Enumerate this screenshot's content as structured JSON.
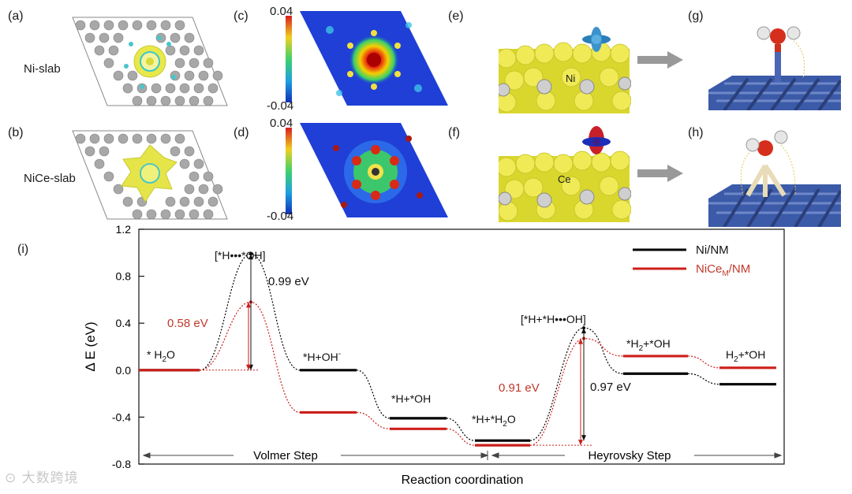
{
  "top_panels": {
    "labels": {
      "a": "(a)",
      "b": "(b)",
      "c": "(c)",
      "d": "(d)",
      "e": "(e)",
      "f": "(f)",
      "g": "(g)",
      "h": "(h)",
      "i": "(i)"
    },
    "slab_names": {
      "ni": "Ni-slab",
      "nice": "NiCe-slab"
    },
    "colorbar_c": {
      "max": "0.04",
      "min": "-0.04"
    },
    "colorbar_d": {
      "max": "0.04",
      "min": "-0.04"
    },
    "atom_labels": {
      "ni": "Ni",
      "ce": "Ce"
    }
  },
  "chart_data": {
    "type": "line",
    "title": "",
    "xlabel": "Reaction coordination",
    "ylabel": "Δ E (eV)",
    "ylim": [
      -0.8,
      1.2
    ],
    "yticks": [
      "-0.8",
      "-0.4",
      "0.0",
      "0.4",
      "0.8",
      "1.2"
    ],
    "ytick_values": [
      -0.8,
      -0.4,
      0.0,
      0.4,
      0.8,
      1.2
    ],
    "states": [
      "* H2O",
      "[*H•••*OH]",
      "*H+OH-",
      "*H+*OH",
      "*H+*H2O",
      "[*H+*H•••OH]",
      "H2+*OH (a)",
      "H2+*OH (b)"
    ],
    "series": [
      {
        "name": "Ni/NM",
        "color": "#000000",
        "levels": [
          0.0,
          -0.41,
          -0.6,
          -0.03,
          -0.12
        ],
        "ts": [
          0.99,
          0.36
        ]
      },
      {
        "name": "NiCeM/NM",
        "color": "#cc1f1a",
        "levels": [
          0.0,
          -0.36,
          -0.5,
          -0.64,
          0.12,
          0.02
        ],
        "ts": [
          0.58,
          0.27
        ]
      }
    ],
    "legend": [
      {
        "label": "Ni/NM",
        "color": "#000000"
      },
      {
        "label_main": "NiCe",
        "label_sub": "M",
        "label_tail": "/NM",
        "color": "#cc1f1a"
      }
    ],
    "state_labels": {
      "h2o": {
        "pre": "* H",
        "sub": "2",
        "post": "O"
      },
      "ts1": "[*H•••*OH]",
      "hoh": {
        "pre": "*H+OH",
        "sup": "-"
      },
      "hoh2": "*H+*OH",
      "hh2o": {
        "pre": "*H+*H",
        "sub": "2",
        "post": "O"
      },
      "ts2": "[*H+*H•••OH]",
      "h2oh_a": {
        "pre": "*H",
        "sub": "2",
        "post": "+*OH"
      },
      "h2oh_b": {
        "pre": "H",
        "sub": "2",
        "post": "+*OH"
      }
    },
    "barriers": [
      {
        "text": "0.99 eV",
        "color": "black"
      },
      {
        "text": "0.58 eV",
        "color": "red"
      },
      {
        "text": "0.91 eV",
        "color": "red"
      },
      {
        "text": "0.97 eV",
        "color": "black"
      }
    ],
    "steps": [
      "Volmer Step",
      "Heyrovsky Step"
    ]
  },
  "watermark": "大数跨境"
}
